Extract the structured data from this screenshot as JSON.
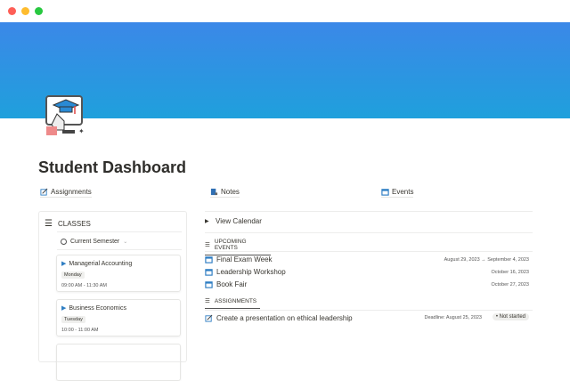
{
  "window": {
    "controls": [
      "close",
      "minimize",
      "maximize"
    ]
  },
  "colors": {
    "banner_top": "#3b88e8",
    "banner_bottom": "#1fa0dc",
    "event_icon": "#2f7ec3"
  },
  "page": {
    "title": "Student Dashboard",
    "icon": "graduation-monitor-icon"
  },
  "links": [
    {
      "label": "Assignments",
      "icon": "edit-icon"
    },
    {
      "label": "Notes",
      "icon": "notes-icon"
    },
    {
      "label": "Events",
      "icon": "calendar-icon"
    }
  ],
  "classes": {
    "header": "CLASSES",
    "filter": "Current Semester",
    "cards": [
      {
        "name": "Managerial Accounting",
        "day": "Monday",
        "time": "09:00 AM - 11:30 AM"
      },
      {
        "name": "Business Economics",
        "day": "Tuesday",
        "time": "10:00 - 11:00 AM"
      }
    ]
  },
  "calendar": {
    "toggle": "View Calendar"
  },
  "events": {
    "header": "UPCOMING EVENTS",
    "items": [
      {
        "name": "Final Exam Week",
        "date": "August 29, 2023 → September 4, 2023"
      },
      {
        "name": "Leadership Workshop",
        "date": "October 16, 2023"
      },
      {
        "name": "Book Fair",
        "date": "October 27, 2023"
      }
    ]
  },
  "assignments": {
    "header": "ASSIGNMENTS",
    "items": [
      {
        "name": "Create a presentation on ethical leadership",
        "deadline": "Deadline: August 25, 2023",
        "status": "Not started"
      }
    ]
  }
}
